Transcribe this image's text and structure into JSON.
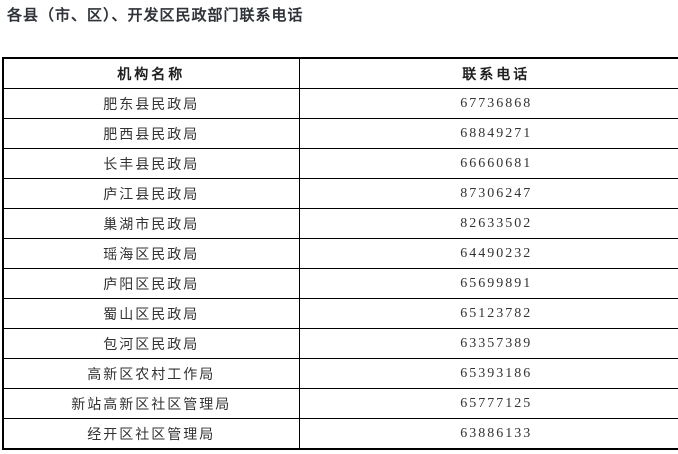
{
  "page": {
    "title": "各县（市、区）、开发区民政部门联系电话"
  },
  "table": {
    "headers": [
      "机构名称",
      "联系电话"
    ],
    "rows": [
      {
        "name": "肥东县民政局",
        "phone": "67736868"
      },
      {
        "name": "肥西县民政局",
        "phone": "68849271"
      },
      {
        "name": "长丰县民政局",
        "phone": "66660681"
      },
      {
        "name": "庐江县民政局",
        "phone": "87306247"
      },
      {
        "name": "巢湖市民政局",
        "phone": "82633502"
      },
      {
        "name": "瑶海区民政局",
        "phone": "64490232"
      },
      {
        "name": "庐阳区民政局",
        "phone": "65699891"
      },
      {
        "name": "蜀山区民政局",
        "phone": "65123782"
      },
      {
        "name": "包河区民政局",
        "phone": "63357389"
      },
      {
        "name": "高新区农村工作局",
        "phone": "65393186"
      },
      {
        "name": "新站高新区社区管理局",
        "phone": "65777125"
      },
      {
        "name": "经开区社区管理局",
        "phone": "63886133"
      }
    ]
  },
  "colors": {
    "background": "#ffffff",
    "title_text": "#2f3339",
    "table_border": "#000000",
    "cell_text": "#3a3a3a"
  }
}
